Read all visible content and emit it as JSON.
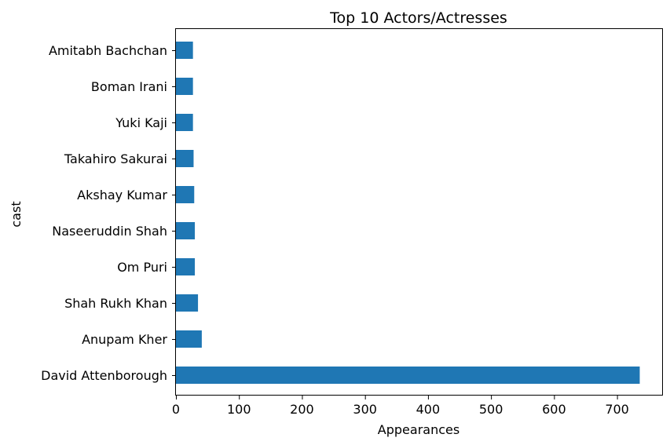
{
  "chart_data": {
    "type": "bar",
    "orientation": "horizontal",
    "title": "Top 10 Actors/Actresses",
    "xlabel": "Appearances",
    "ylabel": "cast",
    "categories": [
      "David Attenborough",
      "Anupam Kher",
      "Shah Rukh Khan",
      "Om Puri",
      "Naseeruddin Shah",
      "Akshay Kumar",
      "Takahiro Sakurai",
      "Yuki Kaji",
      "Boman Irani",
      "Amitabh Bachchan"
    ],
    "values": [
      736,
      41,
      35,
      30,
      30,
      29,
      28,
      27,
      27,
      27
    ],
    "xlim": [
      0,
      772.8
    ],
    "xticks": [
      0,
      100,
      200,
      300,
      400,
      500,
      600,
      700
    ],
    "grid": false,
    "legend": "none",
    "bar_color": "#1f77b4"
  }
}
